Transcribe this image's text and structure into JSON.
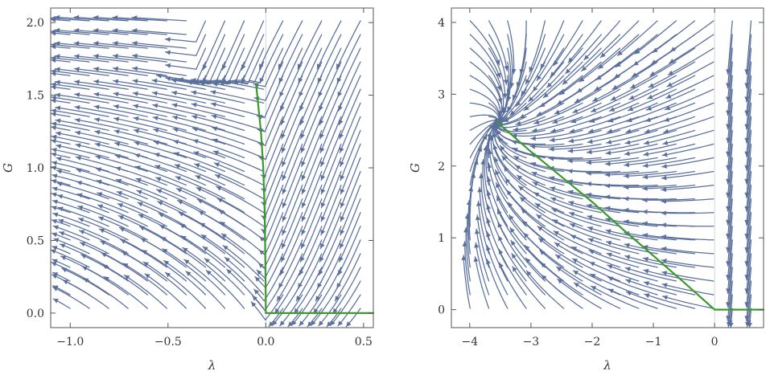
{
  "chart_data": [
    {
      "type": "stream",
      "xlabel": "λ",
      "ylabel": "G",
      "xlim": [
        -1.1,
        0.55
      ],
      "ylim": [
        -0.1,
        2.1
      ],
      "xticks": [
        -1.0,
        -0.5,
        0.0,
        0.5
      ],
      "xtick_labels": [
        "−1.0",
        "−0.5",
        "0.0",
        "0.5"
      ],
      "yticks": [
        0.0,
        0.5,
        1.0,
        1.5,
        2.0
      ],
      "ytick_labels": [
        "0.0",
        "0.5",
        "1.0",
        "1.5",
        "2.0"
      ],
      "zero_line_x": 0,
      "grid": false,
      "colors": {
        "streamlines": "#5a6f9c",
        "curve": "#3a9a2a",
        "frame": "#555555"
      },
      "curve": {
        "x": [
          -0.05,
          -0.04,
          -0.025,
          -0.013,
          -0.006,
          -0.002,
          0.0,
          0.0,
          0.2,
          0.4,
          0.55
        ],
        "y": [
          1.58,
          1.45,
          1.25,
          1.0,
          0.7,
          0.35,
          0.1,
          0.0,
          0.0,
          0.0,
          0.0
        ]
      }
    },
    {
      "type": "stream",
      "xlabel": "λ",
      "ylabel": "G",
      "xlim": [
        -4.3,
        0.8
      ],
      "ylim": [
        -0.25,
        4.2
      ],
      "xticks": [
        -4,
        -3,
        -2,
        -1,
        0
      ],
      "xtick_labels": [
        "−4",
        "−3",
        "−2",
        "−1",
        "0"
      ],
      "yticks": [
        0,
        1,
        2,
        3,
        4
      ],
      "ytick_labels": [
        "0",
        "1",
        "2",
        "3",
        "4"
      ],
      "zero_line_x": 0,
      "grid": false,
      "colors": {
        "streamlines": "#5a6f9c",
        "curve": "#3a9a2a",
        "frame": "#555555"
      },
      "curve": {
        "x": [
          -3.55,
          -3.0,
          -2.5,
          -2.0,
          -1.5,
          -1.0,
          -0.5,
          0.0,
          0.4,
          0.8
        ],
        "y": [
          2.61,
          2.2,
          1.85,
          1.5,
          1.12,
          0.75,
          0.38,
          0.0,
          0.0,
          0.0
        ]
      }
    }
  ]
}
